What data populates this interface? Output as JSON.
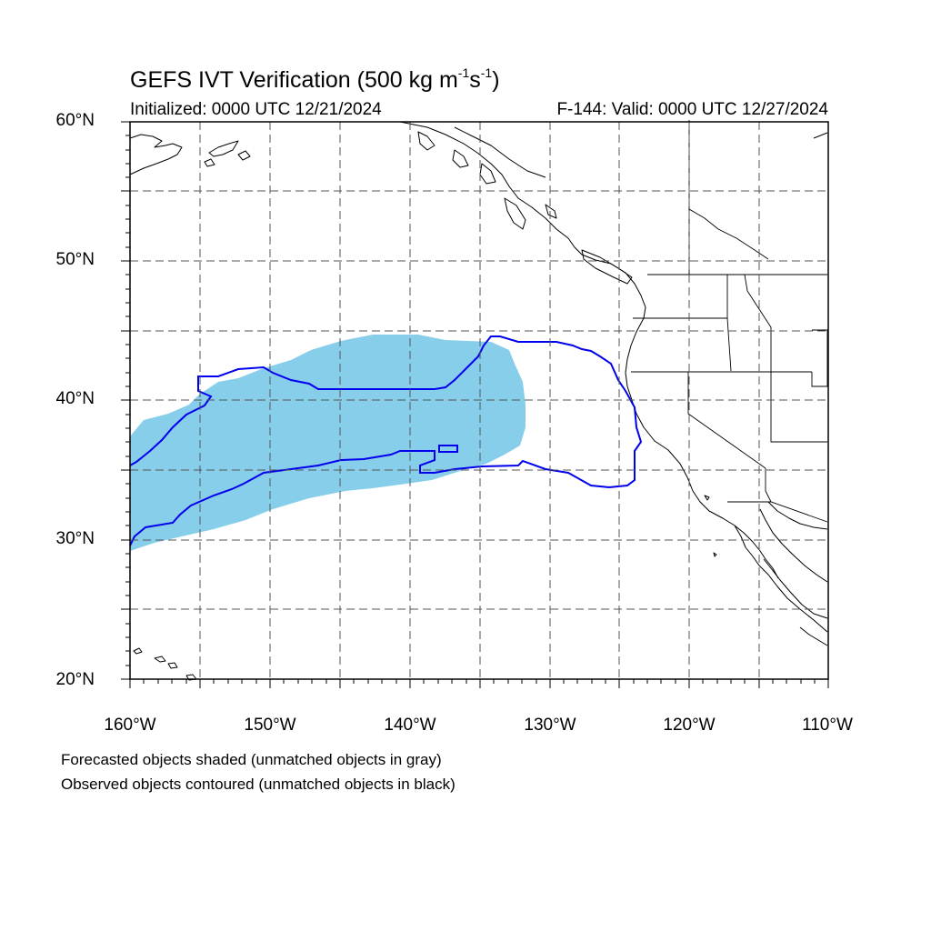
{
  "header": {
    "title_main": "GEFS IVT Verification (500 kg m",
    "title_exp1": "-1",
    "title_mid": "s",
    "title_exp2": "-1",
    "title_end": ")",
    "initialized": "Initialized: 0000 UTC 12/21/2024",
    "valid": "F-144: Valid: 0000 UTC 12/27/2024"
  },
  "map": {
    "projection": "cylindrical-equidistant",
    "lon_range": [
      -160,
      -110
    ],
    "lat_range": [
      20,
      60
    ],
    "grid": true,
    "lat_labels": [
      "60°N",
      "50°N",
      "40°N",
      "30°N",
      "20°N"
    ],
    "lon_labels": [
      "160°W",
      "150°W",
      "140°W",
      "130°W",
      "120°W",
      "110°W"
    ],
    "forecast_fill_color": "#87ceeb",
    "observed_contour_color": "#0000ee",
    "coast_color": "#000000"
  },
  "notes": {
    "forecast": "Forecasted objects shaded (unmatched objects in gray)",
    "observed": "Observed objects contoured (unmatched objects in black)"
  }
}
